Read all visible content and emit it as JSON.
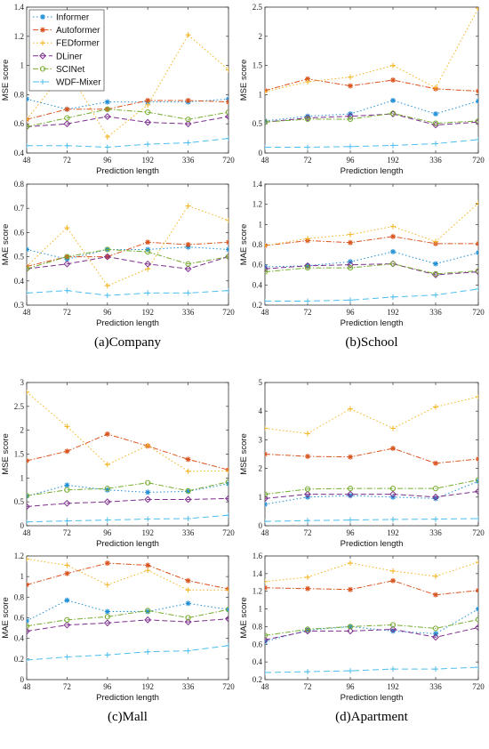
{
  "chart_data": [
    {
      "type": "line",
      "caption": "",
      "xlabel": "Prediction length",
      "ylabel": "MSE score",
      "categories": [
        "48",
        "72",
        "96",
        "192",
        "336",
        "720"
      ],
      "ylim": [
        0.4,
        1.4
      ],
      "yticks": [
        "0.4",
        "0.6",
        "0.8",
        "1",
        "1.2",
        "1.4"
      ],
      "series": [
        {
          "name": "Informer",
          "values": [
            0.77,
            0.7,
            0.75,
            0.75,
            0.75,
            0.77
          ]
        },
        {
          "name": "Autoformer",
          "values": [
            0.63,
            0.7,
            0.7,
            0.76,
            0.76,
            0.75
          ]
        },
        {
          "name": "FEDformer",
          "values": [
            0.63,
            0.98,
            0.51,
            0.73,
            1.21,
            0.97
          ]
        },
        {
          "name": "DLiner",
          "values": [
            0.58,
            0.6,
            0.65,
            0.61,
            0.6,
            0.65
          ]
        },
        {
          "name": "SCINet",
          "values": [
            0.58,
            0.64,
            0.7,
            0.68,
            0.63,
            0.68
          ]
        },
        {
          "name": "WDF-Mixer",
          "values": [
            0.45,
            0.45,
            0.44,
            0.46,
            0.47,
            0.5
          ]
        }
      ]
    },
    {
      "type": "line",
      "caption": "",
      "xlabel": "Prediction length",
      "ylabel": "MSE score",
      "categories": [
        "48",
        "72",
        "96",
        "192",
        "336",
        "720"
      ],
      "ylim": [
        0,
        2.5
      ],
      "yticks": [
        "0",
        "0.5",
        "1",
        "1.5",
        "2",
        "2.5"
      ],
      "series": [
        {
          "name": "Informer",
          "values": [
            0.55,
            0.63,
            0.67,
            0.9,
            0.67,
            0.89
          ]
        },
        {
          "name": "Autoformer",
          "values": [
            1.07,
            1.27,
            1.15,
            1.25,
            1.1,
            1.06
          ]
        },
        {
          "name": "FEDformer",
          "values": [
            1.05,
            1.22,
            1.3,
            1.5,
            1.12,
            2.48
          ]
        },
        {
          "name": "DLiner",
          "values": [
            0.53,
            0.6,
            0.63,
            0.67,
            0.48,
            0.53
          ]
        },
        {
          "name": "SCINet",
          "values": [
            0.53,
            0.58,
            0.58,
            0.68,
            0.51,
            0.55
          ]
        },
        {
          "name": "WDF-Mixer",
          "values": [
            0.1,
            0.1,
            0.11,
            0.13,
            0.16,
            0.23
          ]
        }
      ]
    },
    {
      "type": "line",
      "caption": "(a)Company",
      "xlabel": "Prediction length",
      "ylabel": "MAE score",
      "categories": [
        "48",
        "72",
        "96",
        "192",
        "336",
        "720"
      ],
      "ylim": [
        0.3,
        0.8
      ],
      "yticks": [
        "0.3",
        "0.4",
        "0.5",
        "0.6",
        "0.7",
        "0.8"
      ],
      "series": [
        {
          "name": "Informer",
          "values": [
            0.53,
            0.49,
            0.53,
            0.53,
            0.54,
            0.53
          ]
        },
        {
          "name": "Autoformer",
          "values": [
            0.46,
            0.5,
            0.5,
            0.56,
            0.55,
            0.56
          ]
        },
        {
          "name": "FEDformer",
          "values": [
            0.46,
            0.62,
            0.38,
            0.45,
            0.71,
            0.65
          ]
        },
        {
          "name": "DLiner",
          "values": [
            0.45,
            0.47,
            0.5,
            0.47,
            0.45,
            0.5
          ]
        },
        {
          "name": "SCINet",
          "values": [
            0.45,
            0.5,
            0.53,
            0.52,
            0.47,
            0.5
          ]
        },
        {
          "name": "WDF-Mixer",
          "values": [
            0.35,
            0.36,
            0.34,
            0.35,
            0.35,
            0.36
          ]
        }
      ]
    },
    {
      "type": "line",
      "caption": "(b)School",
      "xlabel": "Prediction length",
      "ylabel": "MAE score",
      "categories": [
        "48",
        "72",
        "96",
        "192",
        "336",
        "720"
      ],
      "ylim": [
        0.2,
        1.4
      ],
      "yticks": [
        "0.2",
        "0.4",
        "0.6",
        "0.8",
        "1",
        "1.2",
        "1.4"
      ],
      "series": [
        {
          "name": "Informer",
          "values": [
            0.58,
            0.59,
            0.63,
            0.73,
            0.61,
            0.72
          ]
        },
        {
          "name": "Autoformer",
          "values": [
            0.79,
            0.84,
            0.82,
            0.88,
            0.81,
            0.81
          ]
        },
        {
          "name": "FEDformer",
          "values": [
            0.79,
            0.86,
            0.9,
            0.98,
            0.83,
            1.21
          ]
        },
        {
          "name": "DLiner",
          "values": [
            0.56,
            0.59,
            0.6,
            0.61,
            0.5,
            0.53
          ]
        },
        {
          "name": "SCINet",
          "values": [
            0.53,
            0.57,
            0.57,
            0.61,
            0.51,
            0.54
          ]
        },
        {
          "name": "WDF-Mixer",
          "values": [
            0.24,
            0.24,
            0.25,
            0.28,
            0.3,
            0.36
          ]
        }
      ]
    },
    {
      "type": "line",
      "caption": "",
      "xlabel": "Prediction length",
      "ylabel": "MSE score",
      "categories": [
        "48",
        "72",
        "96",
        "192",
        "336",
        "720"
      ],
      "ylim": [
        0,
        3
      ],
      "yticks": [
        "0",
        "0.5",
        "1",
        "1.5",
        "2",
        "2.5",
        "3"
      ],
      "series": [
        {
          "name": "Informer",
          "values": [
            0.62,
            0.85,
            0.75,
            0.7,
            0.72,
            0.88
          ]
        },
        {
          "name": "Autoformer",
          "values": [
            1.36,
            1.56,
            1.92,
            1.67,
            1.39,
            1.17
          ]
        },
        {
          "name": "FEDformer",
          "values": [
            2.8,
            2.08,
            1.28,
            1.68,
            1.14,
            1.15
          ]
        },
        {
          "name": "DLiner",
          "values": [
            0.4,
            0.47,
            0.5,
            0.55,
            0.55,
            0.57
          ]
        },
        {
          "name": "SCINet",
          "values": [
            0.63,
            0.75,
            0.78,
            0.9,
            0.73,
            0.92
          ]
        },
        {
          "name": "WDF-Mixer",
          "values": [
            0.08,
            0.1,
            0.12,
            0.14,
            0.15,
            0.22
          ]
        }
      ]
    },
    {
      "type": "line",
      "caption": "",
      "xlabel": "Prediction length",
      "ylabel": "MSE score",
      "categories": [
        "48",
        "72",
        "96",
        "192",
        "336",
        "720"
      ],
      "ylim": [
        0,
        5
      ],
      "yticks": [
        "0",
        "1",
        "2",
        "3",
        "4",
        "5"
      ],
      "series": [
        {
          "name": "Informer",
          "values": [
            0.75,
            1.0,
            1.05,
            1.0,
            0.95,
            1.55
          ]
        },
        {
          "name": "Autoformer",
          "values": [
            2.5,
            2.42,
            2.4,
            2.7,
            2.18,
            2.33
          ]
        },
        {
          "name": "FEDformer",
          "values": [
            3.4,
            3.22,
            4.08,
            3.4,
            4.15,
            4.5
          ]
        },
        {
          "name": "DLiner",
          "values": [
            0.95,
            1.1,
            1.1,
            1.1,
            1.0,
            1.2
          ]
        },
        {
          "name": "SCINet",
          "values": [
            1.1,
            1.28,
            1.3,
            1.3,
            1.3,
            1.6
          ]
        },
        {
          "name": "WDF-Mixer",
          "values": [
            0.15,
            0.18,
            0.2,
            0.22,
            0.23,
            0.25
          ]
        }
      ]
    },
    {
      "type": "line",
      "caption": "(c)Mall",
      "xlabel": "Prediction length",
      "ylabel": "MAE score",
      "categories": [
        "48",
        "72",
        "96",
        "192",
        "336",
        "720"
      ],
      "ylim": [
        0,
        1.2
      ],
      "yticks": [
        "0",
        "0.2",
        "0.4",
        "0.6",
        "0.8",
        "1",
        "1.2"
      ],
      "series": [
        {
          "name": "Informer",
          "values": [
            0.57,
            0.77,
            0.66,
            0.66,
            0.74,
            0.68
          ]
        },
        {
          "name": "Autoformer",
          "values": [
            0.92,
            1.03,
            1.13,
            1.11,
            0.96,
            0.88
          ]
        },
        {
          "name": "FEDformer",
          "values": [
            1.17,
            1.11,
            0.92,
            1.06,
            0.87,
            0.87
          ]
        },
        {
          "name": "DLiner",
          "values": [
            0.47,
            0.53,
            0.55,
            0.58,
            0.56,
            0.59
          ]
        },
        {
          "name": "SCINet",
          "values": [
            0.52,
            0.58,
            0.61,
            0.67,
            0.6,
            0.68
          ]
        },
        {
          "name": "WDF-Mixer",
          "values": [
            0.19,
            0.22,
            0.24,
            0.27,
            0.28,
            0.33
          ]
        }
      ]
    },
    {
      "type": "line",
      "caption": "(d)Apartment",
      "xlabel": "Prediction length",
      "ylabel": "MAE score",
      "categories": [
        "48",
        "72",
        "96",
        "192",
        "336",
        "720"
      ],
      "ylim": [
        0.2,
        1.6
      ],
      "yticks": [
        "0.2",
        "0.4",
        "0.6",
        "0.8",
        "1",
        "1.2",
        "1.4",
        "1.6"
      ],
      "series": [
        {
          "name": "Informer",
          "values": [
            0.63,
            0.76,
            0.8,
            0.75,
            0.72,
            1.0
          ]
        },
        {
          "name": "Autoformer",
          "values": [
            1.24,
            1.23,
            1.22,
            1.32,
            1.16,
            1.21
          ]
        },
        {
          "name": "FEDformer",
          "values": [
            1.31,
            1.36,
            1.52,
            1.43,
            1.37,
            1.53
          ]
        },
        {
          "name": "DLiner",
          "values": [
            0.65,
            0.75,
            0.75,
            0.77,
            0.68,
            0.79
          ]
        },
        {
          "name": "SCINet",
          "values": [
            0.7,
            0.77,
            0.8,
            0.82,
            0.78,
            0.88
          ]
        },
        {
          "name": "WDF-Mixer",
          "values": [
            0.28,
            0.29,
            0.3,
            0.32,
            0.32,
            0.34
          ]
        }
      ]
    }
  ],
  "legend": {
    "placement": "top-left of first panel",
    "items": [
      {
        "name": "Informer",
        "color": "#1f8fd6",
        "dash": "1.5,2.5",
        "marker": "star"
      },
      {
        "name": "Autoformer",
        "color": "#d9531e",
        "dash": "6,2,1.5,2",
        "marker": "star"
      },
      {
        "name": "FEDformer",
        "color": "#f5b21d",
        "dash": "1.5,2.5",
        "marker": "plus"
      },
      {
        "name": "DLiner",
        "color": "#7e2f8e",
        "dash": "6,3",
        "marker": "diamond"
      },
      {
        "name": "SCINet",
        "color": "#77ac30",
        "dash": "6,2,1.5,2",
        "marker": "circle"
      },
      {
        "name": "WDF-Mixer",
        "color": "#4dbeee",
        "dash": "7,4",
        "marker": "plus"
      }
    ]
  }
}
